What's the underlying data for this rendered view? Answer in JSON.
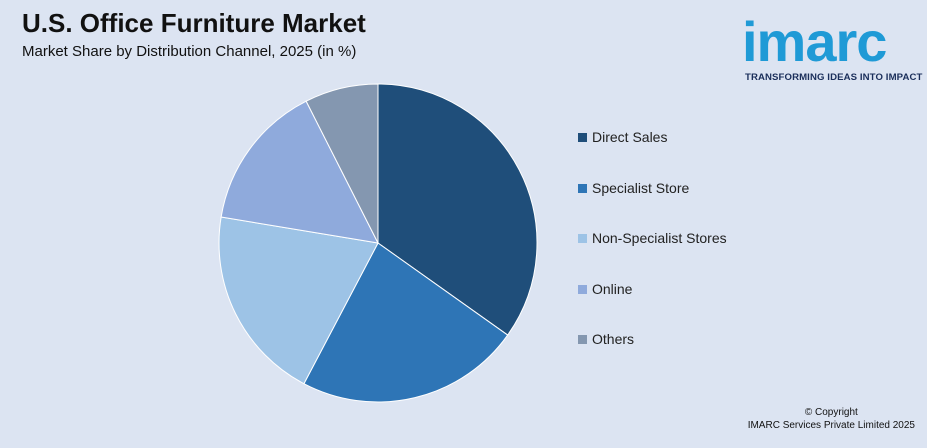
{
  "header": {
    "title": "U.S. Office Furniture Market",
    "subtitle": "Market Share by Distribution Channel, 2025 (in %)"
  },
  "logo": {
    "word": "imarc",
    "tagline": "TRANSFORMING IDEAS INTO IMPACT",
    "color": "#1f9ad6"
  },
  "chart_data": {
    "type": "pie",
    "title": "U.S. Office Furniture Market",
    "subtitle": "Market Share by Distribution Channel, 2025 (in %)",
    "categories": [
      "Direct Sales",
      "Specialist Store",
      "Non-Specialist Stores",
      "Online",
      "Others"
    ],
    "values": [
      35,
      23,
      20,
      15,
      7.5
    ],
    "colors": [
      "#1f4e7a",
      "#2e75b6",
      "#9dc3e6",
      "#8faadc",
      "#8497b0"
    ],
    "legend_position": "right"
  },
  "footer": {
    "copyright_line1": "© Copyright",
    "copyright_line2": "IMARC Services Private Limited 2025"
  }
}
